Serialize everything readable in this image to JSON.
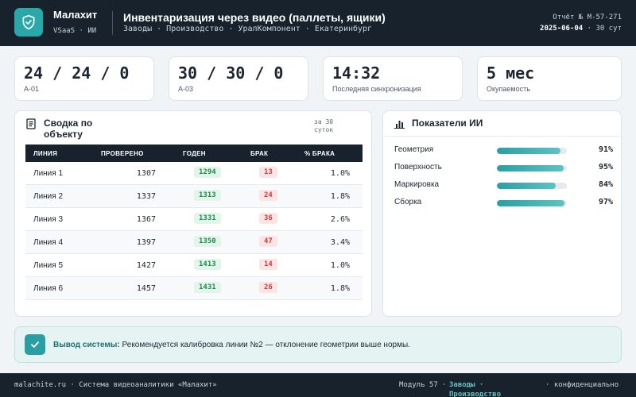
{
  "header": {
    "brand_name": "Малахит",
    "brand_sub": "VSaaS · ИИ",
    "title": "Инвентаризация через видео (паллеты, ящики)",
    "breadcrumbs": "Заводы · Производство · УралКомпонент · Екатеринбург",
    "report_label": "Отчёт № M-57-271",
    "report_date": "2025-06-04",
    "report_period": "· 30 сут"
  },
  "kpis": [
    {
      "value": "24 / 24 / 0",
      "label": "А-01"
    },
    {
      "value": "30 / 30 / 0",
      "label": "А-03"
    },
    {
      "value": "14:32",
      "label": "Последняя синхронизация"
    },
    {
      "value": "5 мес",
      "label": "Окупаемость"
    }
  ],
  "summary": {
    "title": "Сводка по объекту",
    "period": "за 30 суток",
    "columns": [
      "ЛИНИЯ",
      "ПРОВЕРЕНО",
      "ГОДЕН",
      "БРАК",
      "% БРАКА"
    ],
    "rows": [
      {
        "line": "Линия 1",
        "checked": "1307",
        "good": "1294",
        "defect": "13",
        "pct": "1.0%"
      },
      {
        "line": "Линия 2",
        "checked": "1337",
        "good": "1313",
        "defect": "24",
        "pct": "1.8%"
      },
      {
        "line": "Линия 3",
        "checked": "1367",
        "good": "1331",
        "defect": "36",
        "pct": "2.6%"
      },
      {
        "line": "Линия 4",
        "checked": "1397",
        "good": "1350",
        "defect": "47",
        "pct": "3.4%"
      },
      {
        "line": "Линия 5",
        "checked": "1427",
        "good": "1413",
        "defect": "14",
        "pct": "1.0%"
      },
      {
        "line": "Линия 6",
        "checked": "1457",
        "good": "1431",
        "defect": "26",
        "pct": "1.8%"
      }
    ]
  },
  "ai": {
    "title": "Показатели ИИ",
    "items": [
      {
        "label": "Геометрия",
        "value": "91%",
        "level": 91
      },
      {
        "label": "Поверхность",
        "value": "95%",
        "level": 95
      },
      {
        "label": "Маркировка",
        "value": "84%",
        "level": 84
      },
      {
        "label": "Сборка",
        "value": "97%",
        "level": 97
      }
    ]
  },
  "conclusion": {
    "label": "Вывод системы:",
    "text": "Рекомендуется калибровка линии №2 — отклонение геометрии выше нормы."
  },
  "footer": {
    "left": "malachite.ru · Система видеоаналитики «Малахит»",
    "module": "Модуль 57 ·",
    "module_link": "Заводы · Производство",
    "confidential": "· конфиденциально"
  },
  "colors": {
    "accent": "#2aa7a9",
    "dark": "#18222d",
    "good": "#1f8a4d",
    "bad": "#d13b3b"
  }
}
